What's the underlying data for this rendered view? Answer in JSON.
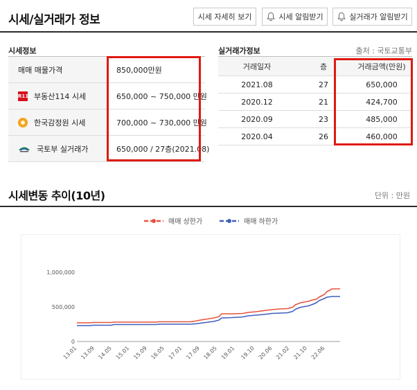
{
  "header": {
    "title": "시세/실거래가 정보",
    "buttons": [
      {
        "label": "시세 자세히 보기"
      },
      {
        "label": "시세 알림받기",
        "icon": "bell-icon"
      },
      {
        "label": "실거래가 알림받기",
        "icon": "bell-icon"
      }
    ]
  },
  "price_info": {
    "heading": "시세정보",
    "rows": [
      {
        "label": "매매 매물가격",
        "value": "850,000만원"
      },
      {
        "label": "부동산114 시세",
        "value": "650,000 ~ 750,000 만원",
        "icon": "r114-logo-icon"
      },
      {
        "label": "한국감정원 시세",
        "value": "700,000 ~ 730,000 만원",
        "icon": "kab-logo-icon"
      },
      {
        "label": "국토부 실거래가",
        "value": "650,000 / 27층(2021.08)",
        "icon": "molit-logo-icon"
      }
    ],
    "r114_logo_text": "R114"
  },
  "real_price": {
    "heading": "실거래가정보",
    "source": "출처 : 국토교통부",
    "columns": [
      "거래일자",
      "층",
      "거래금액(만원)"
    ],
    "rows": [
      [
        "2021.08",
        "27",
        "650,000"
      ],
      [
        "2020.12",
        "21",
        "424,700"
      ],
      [
        "2020.09",
        "23",
        "485,000"
      ],
      [
        "2020.04",
        "26",
        "460,000"
      ]
    ]
  },
  "trend": {
    "title": "시세변동 추이(10년)",
    "unit": "단위 : 만원"
  },
  "colors": {
    "highlight": "#e0180f",
    "upper_line": "#e8513c",
    "lower_line": "#3f5fbf",
    "zero_line": "#9a9a9a"
  },
  "chart_data": {
    "type": "line",
    "legend": [
      "매매 상한가",
      "매매 하한가"
    ],
    "legend_position": "top-center",
    "grid": false,
    "ylim": [
      0,
      1000000
    ],
    "yticks": [
      "0",
      "500,000",
      "1,000,000"
    ],
    "ytick_values": [
      0,
      500000,
      1000000
    ],
    "xticks": [
      "13.01",
      "13.09",
      "14.05",
      "15.01",
      "15.09",
      "16.05",
      "17.01",
      "17.09",
      "18.05",
      "19.01",
      "19.10",
      "20.06",
      "21.02",
      "21.10",
      "22.06"
    ],
    "xrange": [
      2013.0,
      2023.0
    ],
    "xtick_positions": [
      2013.0,
      2013.67,
      2014.33,
      2015.0,
      2015.67,
      2016.33,
      2017.0,
      2017.67,
      2018.33,
      2019.0,
      2019.75,
      2020.42,
      2021.08,
      2021.75,
      2022.42
    ],
    "series": [
      {
        "name": "매매 상한가",
        "color": "#e8513c",
        "x": [
          2013.0,
          2013.5,
          2013.6,
          2014.3,
          2014.4,
          2015.3,
          2016.0,
          2016.1,
          2017.3,
          2017.5,
          2017.7,
          2018.2,
          2018.4,
          2018.5,
          2018.9,
          2019.3,
          2019.5,
          2019.8,
          2020.2,
          2020.4,
          2020.7,
          2021.0,
          2021.2,
          2021.3,
          2021.5,
          2021.8,
          2021.95,
          2022.1,
          2022.2,
          2022.4,
          2022.5,
          2022.7,
          2023.0
        ],
        "y": [
          270000,
          270000,
          275000,
          275000,
          280000,
          280000,
          280000,
          285000,
          285000,
          295000,
          310000,
          340000,
          360000,
          400000,
          400000,
          405000,
          420000,
          430000,
          450000,
          460000,
          470000,
          475000,
          495000,
          530000,
          560000,
          580000,
          600000,
          610000,
          640000,
          680000,
          720000,
          760000,
          760000
        ]
      },
      {
        "name": "매매 하한가",
        "color": "#3f5fbf",
        "x": [
          2013.0,
          2013.5,
          2013.6,
          2014.3,
          2014.4,
          2015.3,
          2016.0,
          2016.1,
          2017.3,
          2017.5,
          2017.7,
          2018.2,
          2018.4,
          2018.5,
          2018.9,
          2019.3,
          2019.5,
          2019.8,
          2020.2,
          2020.4,
          2020.7,
          2021.0,
          2021.2,
          2021.3,
          2021.5,
          2021.8,
          2021.95,
          2022.1,
          2022.2,
          2022.4,
          2022.5,
          2022.7,
          2023.0
        ],
        "y": [
          230000,
          230000,
          235000,
          235000,
          245000,
          245000,
          245000,
          250000,
          250000,
          255000,
          265000,
          290000,
          310000,
          340000,
          345000,
          355000,
          370000,
          380000,
          395000,
          405000,
          410000,
          415000,
          435000,
          465000,
          495000,
          515000,
          535000,
          560000,
          590000,
          620000,
          640000,
          650000,
          650000
        ]
      }
    ]
  }
}
